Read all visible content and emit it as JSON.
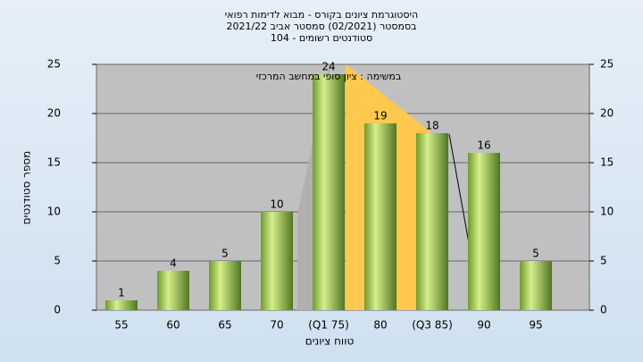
{
  "chart_data": {
    "type": "bar",
    "title": "היסטוגרמת ציונים בקורס - מבוא לדימות רפואי",
    "subtitle": "בסמסטר  (02/2021)  סמסטר אביב 2021/22",
    "subtitle2": "סטודנטים רשומים - 104",
    "annotation": "במשימה : ציון סופי במחשב המרכזי",
    "xlabel": "טווח ציונים",
    "ylabel": "מספר סטודנטים",
    "categories": [
      "55",
      "60",
      "65",
      "70",
      "(Q1 75)",
      "80",
      "(Q3 85)",
      "90",
      "95"
    ],
    "values": [
      1,
      4,
      5,
      10,
      24,
      19,
      18,
      16,
      5
    ],
    "color": "#8db84a",
    "ylim": [
      0,
      25
    ],
    "yticks": [
      0,
      5,
      10,
      15,
      20,
      25
    ],
    "y2lim": [
      0,
      25
    ],
    "y2ticks": [
      0,
      5,
      10,
      15,
      20,
      25
    ],
    "grid": true
  }
}
